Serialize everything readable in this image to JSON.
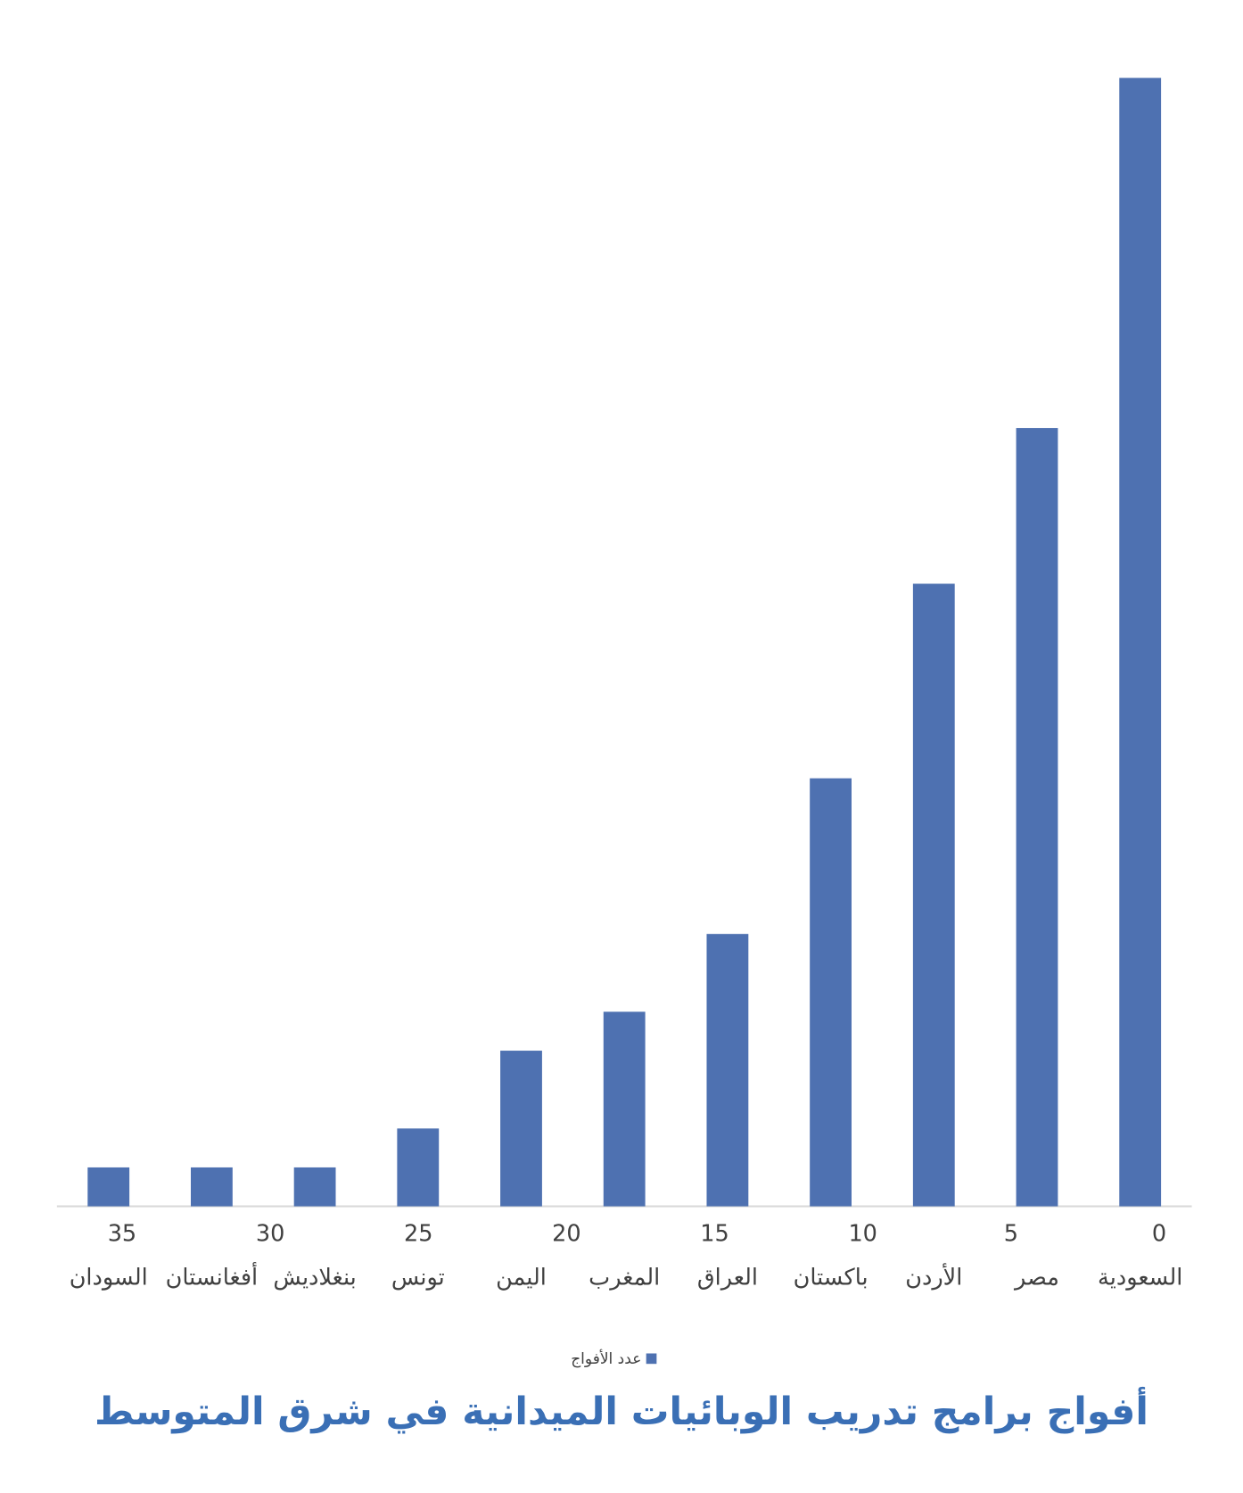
{
  "chart_data": {
    "type": "bar",
    "title": "أفواج برامج تدريب الوبائيات الميدانية في شرق المتوسط",
    "categories": [
      "السعودية",
      "مصر",
      "الأردن",
      "باكستان",
      "العراق",
      "المغرب",
      "اليمن",
      "تونس",
      "بنغلاديش",
      "أفغانستان",
      "السودان"
    ],
    "series": [
      {
        "name": "عدد الأفواج",
        "color": "#4e71b1",
        "values": [
          29,
          20,
          16,
          11,
          7,
          5,
          4,
          2,
          1,
          1,
          1
        ]
      }
    ],
    "xlim": [
      37.2,
      -1.1
    ],
    "xticks": [
      0,
      5,
      10,
      15,
      20,
      25,
      30,
      35
    ],
    "direction": "rtl",
    "legend": "bottom"
  }
}
